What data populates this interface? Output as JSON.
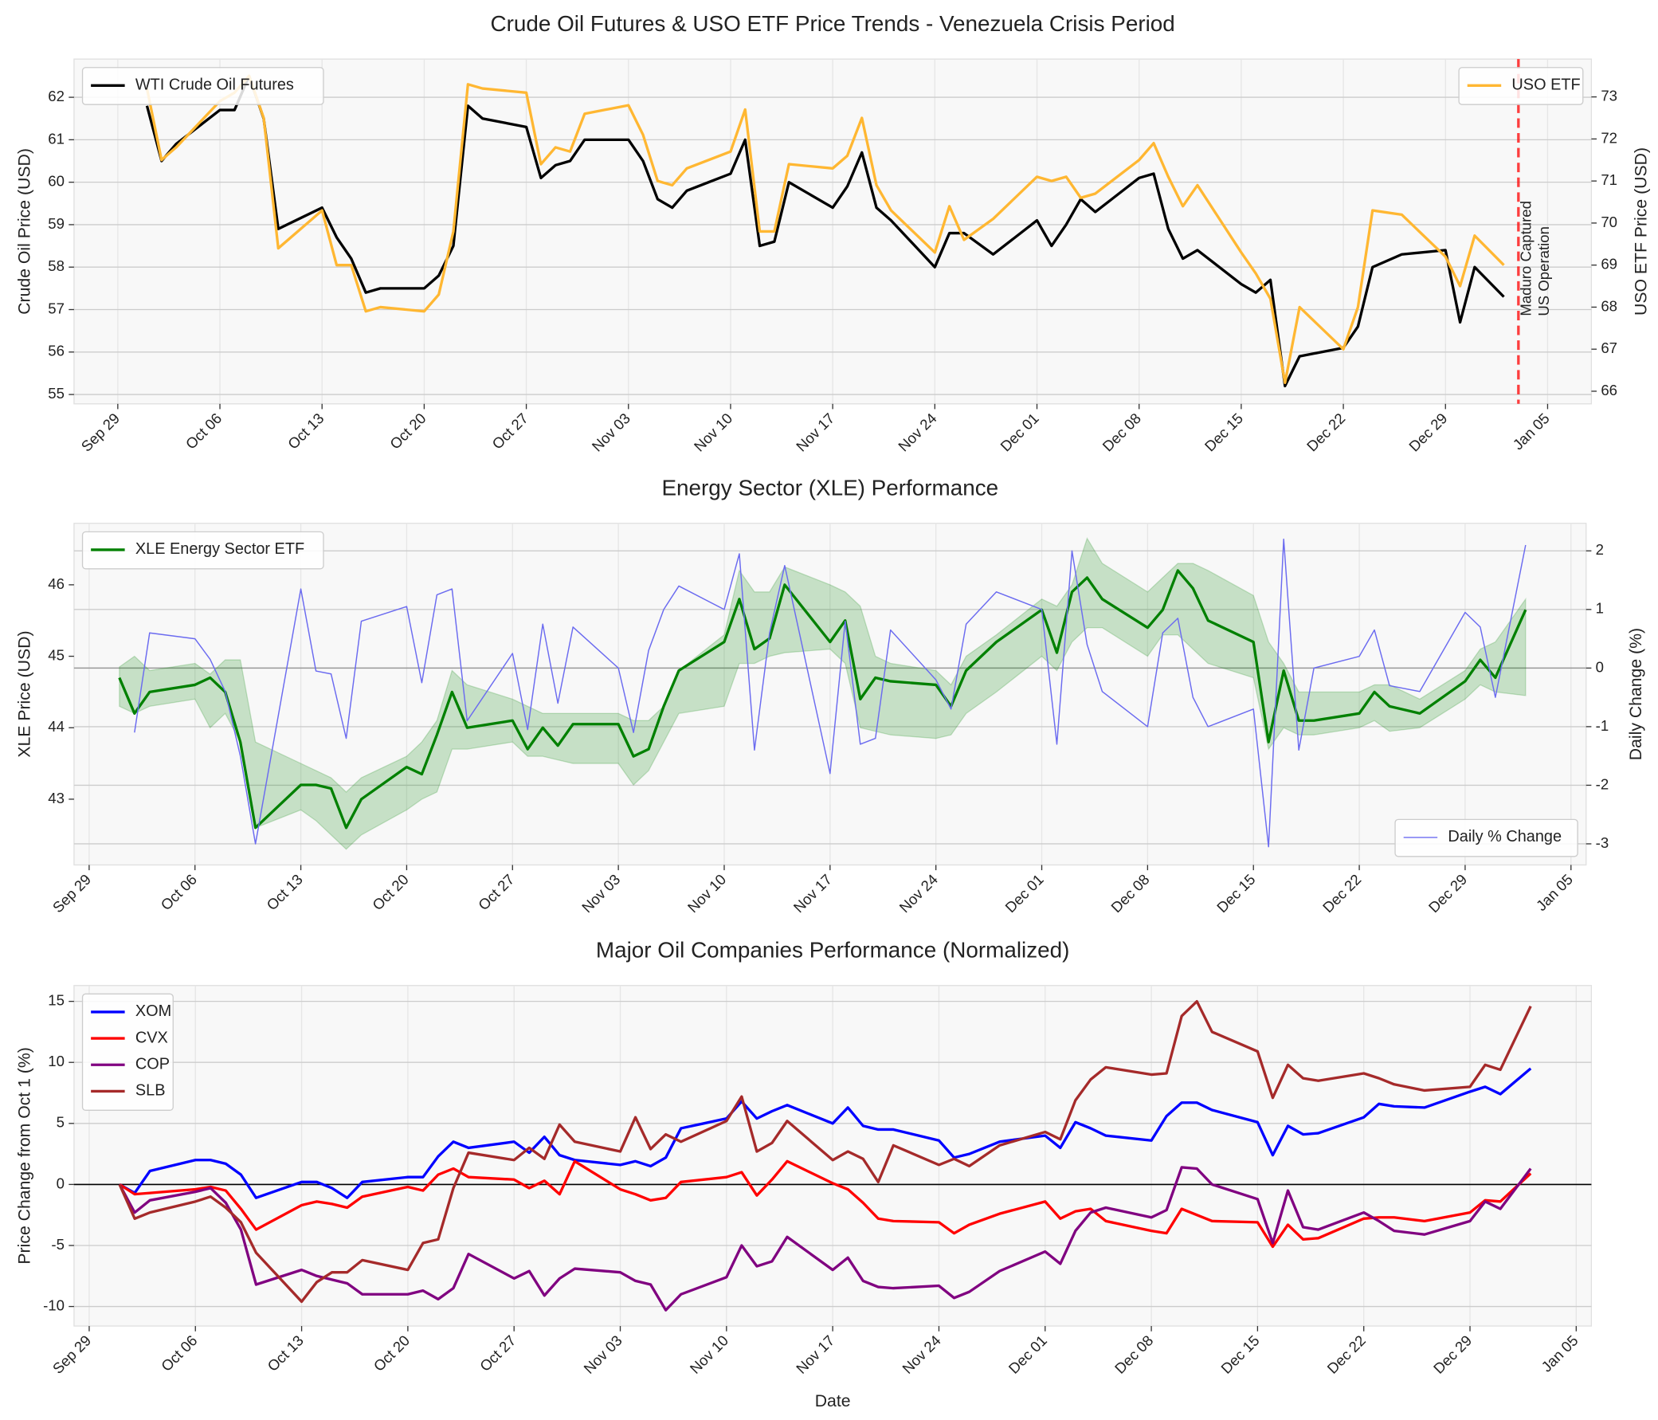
{
  "chart_data": [
    {
      "type": "line",
      "title": "Crude Oil Futures & USO ETF Price Trends - Venezuela Crisis Period",
      "ylabel": "Crude Oil Price (USD)",
      "y2label": "USO ETF Price (USD)",
      "y2label_color": "#ffa500",
      "x": [
        "Oct 01",
        "Oct 02",
        "Oct 03",
        "Oct 06",
        "Oct 07",
        "Oct 08",
        "Oct 09",
        "Oct 10",
        "Oct 13",
        "Oct 14",
        "Oct 15",
        "Oct 16",
        "Oct 17",
        "Oct 20",
        "Oct 21",
        "Oct 22",
        "Oct 23",
        "Oct 24",
        "Oct 27",
        "Oct 28",
        "Oct 29",
        "Oct 30",
        "Oct 31",
        "Nov 03",
        "Nov 04",
        "Nov 05",
        "Nov 06",
        "Nov 07",
        "Nov 10",
        "Nov 11",
        "Nov 12",
        "Nov 13",
        "Nov 14",
        "Nov 17",
        "Nov 18",
        "Nov 19",
        "Nov 20",
        "Nov 21",
        "Nov 24",
        "Nov 25",
        "Nov 26",
        "Nov 28",
        "Dec 01",
        "Dec 02",
        "Dec 03",
        "Dec 04",
        "Dec 05",
        "Dec 08",
        "Dec 09",
        "Dec 10",
        "Dec 11",
        "Dec 12",
        "Dec 15",
        "Dec 16",
        "Dec 17",
        "Dec 18",
        "Dec 19",
        "Dec 22",
        "Dec 23",
        "Dec 24",
        "Dec 26",
        "Dec 29",
        "Dec 30",
        "Dec 31",
        "Jan 02"
      ],
      "xlim": [
        "Sep 26",
        "Jan 08"
      ],
      "xticks": [
        "Sep 29",
        "Oct 06",
        "Oct 13",
        "Oct 20",
        "Oct 27",
        "Nov 03",
        "Nov 10",
        "Nov 17",
        "Nov 24",
        "Dec 01",
        "Dec 08",
        "Dec 15",
        "Dec 22",
        "Dec 29",
        "Jan 05"
      ],
      "ylim": [
        54.78,
        62.9
      ],
      "yticks": [
        55,
        56,
        57,
        58,
        59,
        60,
        61,
        62
      ],
      "y2lim": [
        65.7,
        73.9
      ],
      "y2ticks": [
        66,
        67,
        68,
        69,
        70,
        71,
        72,
        73
      ],
      "grid": "y",
      "series": [
        {
          "name": "WTI Crude Oil Futures",
          "color": "#000000",
          "linewidth": 2.5,
          "axis": "y",
          "legend": "upper left",
          "values": [
            61.8,
            60.5,
            60.9,
            61.7,
            61.7,
            62.5,
            61.5,
            58.9,
            59.4,
            58.7,
            58.2,
            57.4,
            57.5,
            57.5,
            57.8,
            58.5,
            61.8,
            61.5,
            61.3,
            60.1,
            60.4,
            60.5,
            61.0,
            61.0,
            60.5,
            59.6,
            59.4,
            59.8,
            60.2,
            61.0,
            58.5,
            58.6,
            60.0,
            59.4,
            59.9,
            60.7,
            59.4,
            59.1,
            58.0,
            58.8,
            58.8,
            58.3,
            59.1,
            58.5,
            59.0,
            59.6,
            59.3,
            60.1,
            60.2,
            58.9,
            58.2,
            58.4,
            57.6,
            57.4,
            57.7,
            55.2,
            55.9,
            56.1,
            56.6,
            58.0,
            58.3,
            58.4,
            56.7,
            58.0,
            57.3
          ]
        },
        {
          "name": "USO ETF",
          "color": "#ffb732",
          "linewidth": 2.5,
          "axis": "y2",
          "legend": "upper right",
          "values": [
            73.2,
            71.5,
            71.8,
            72.9,
            73.1,
            73.5,
            72.5,
            69.4,
            70.3,
            69.0,
            69.0,
            67.9,
            68.0,
            67.9,
            68.3,
            69.8,
            73.3,
            73.2,
            73.1,
            71.4,
            71.8,
            71.7,
            72.6,
            72.8,
            72.1,
            71.0,
            70.9,
            71.3,
            71.7,
            72.7,
            69.8,
            69.8,
            71.4,
            71.3,
            71.6,
            72.5,
            70.9,
            70.3,
            69.3,
            70.4,
            69.6,
            70.1,
            71.1,
            71.0,
            71.1,
            70.6,
            70.7,
            71.5,
            71.9,
            71.1,
            70.4,
            70.9,
            69.3,
            68.8,
            68.2,
            66.2,
            68.0,
            67.0,
            68.0,
            70.3,
            70.2,
            69.2,
            68.5,
            69.7,
            69.0
          ]
        }
      ],
      "annotation": {
        "x": "Jan 03",
        "text": [
          "Maduro Captured",
          "US Operation"
        ],
        "color": "#ff0000"
      }
    },
    {
      "type": "line",
      "title": "Energy Sector (XLE) Performance",
      "ylabel": "XLE Price (USD)",
      "y2label": "Daily Change (%)",
      "y2label_color": "#0000ff",
      "x": [
        "Oct 01",
        "Oct 02",
        "Oct 03",
        "Oct 06",
        "Oct 07",
        "Oct 08",
        "Oct 09",
        "Oct 10",
        "Oct 13",
        "Oct 14",
        "Oct 15",
        "Oct 16",
        "Oct 17",
        "Oct 20",
        "Oct 21",
        "Oct 22",
        "Oct 23",
        "Oct 24",
        "Oct 27",
        "Oct 28",
        "Oct 29",
        "Oct 30",
        "Oct 31",
        "Nov 03",
        "Nov 04",
        "Nov 05",
        "Nov 06",
        "Nov 07",
        "Nov 10",
        "Nov 11",
        "Nov 12",
        "Nov 13",
        "Nov 14",
        "Nov 17",
        "Nov 18",
        "Nov 19",
        "Nov 20",
        "Nov 21",
        "Nov 24",
        "Nov 25",
        "Nov 26",
        "Nov 28",
        "Dec 01",
        "Dec 02",
        "Dec 03",
        "Dec 04",
        "Dec 05",
        "Dec 08",
        "Dec 09",
        "Dec 10",
        "Dec 11",
        "Dec 12",
        "Dec 15",
        "Dec 16",
        "Dec 17",
        "Dec 18",
        "Dec 19",
        "Dec 22",
        "Dec 23",
        "Dec 24",
        "Dec 26",
        "Dec 29",
        "Dec 30",
        "Dec 31",
        "Jan 02"
      ],
      "xlim": [
        "Sep 28",
        "Jan 06"
      ],
      "xticks": [
        "Sep 29",
        "Oct 06",
        "Oct 13",
        "Oct 20",
        "Oct 27",
        "Nov 03",
        "Nov 10",
        "Nov 17",
        "Nov 24",
        "Dec 01",
        "Dec 08",
        "Dec 15",
        "Dec 22",
        "Dec 29",
        "Jan 05"
      ],
      "ylim": [
        42.08,
        46.86
      ],
      "yticks": [
        43,
        44,
        45,
        46
      ],
      "y2lim": [
        -3.36,
        2.47
      ],
      "y2ticks": [
        -3,
        -2,
        -1,
        0,
        1,
        2
      ],
      "grid": "y2",
      "hline": {
        "value": 0,
        "axis": "y2",
        "color": "#999999"
      },
      "band": {
        "color": "#008000",
        "low": [
          44.3,
          44.2,
          44.3,
          44.4,
          44.0,
          44.2,
          43.8,
          42.6,
          42.85,
          42.7,
          42.5,
          42.3,
          42.5,
          42.85,
          43.0,
          43.1,
          43.7,
          43.7,
          43.8,
          43.6,
          43.6,
          43.55,
          43.5,
          43.5,
          43.2,
          43.4,
          43.8,
          44.2,
          44.3,
          44.9,
          44.9,
          45.0,
          45.05,
          45.1,
          44.9,
          44.0,
          43.95,
          43.9,
          43.85,
          43.9,
          44.2,
          44.5,
          45.0,
          44.8,
          45.2,
          45.4,
          45.4,
          45.0,
          45.3,
          45.3,
          45.1,
          44.9,
          44.7,
          43.7,
          44.0,
          43.9,
          43.9,
          44.0,
          44.1,
          43.95,
          44.0,
          44.4,
          44.6,
          44.5,
          44.45
        ],
        "high": [
          44.85,
          45.0,
          44.8,
          44.9,
          44.75,
          44.95,
          44.95,
          43.8,
          43.5,
          43.4,
          43.3,
          43.1,
          43.3,
          43.6,
          43.8,
          44.1,
          44.8,
          44.6,
          44.4,
          44.3,
          44.2,
          44.2,
          44.2,
          44.2,
          44.1,
          44.1,
          44.3,
          44.8,
          45.3,
          46.2,
          45.9,
          45.9,
          46.25,
          46.0,
          45.9,
          45.7,
          45.0,
          44.9,
          44.8,
          44.6,
          45.0,
          45.3,
          45.8,
          45.7,
          46.0,
          46.65,
          46.3,
          45.9,
          46.1,
          46.3,
          46.3,
          46.2,
          45.85,
          45.2,
          44.9,
          44.5,
          44.5,
          44.5,
          44.6,
          44.6,
          44.4,
          44.8,
          45.1,
          45.2,
          45.8
        ]
      },
      "series": [
        {
          "name": "XLE Energy Sector ETF",
          "color": "#008000",
          "linewidth": 2.5,
          "axis": "y",
          "legend": "upper left",
          "values": [
            44.7,
            44.2,
            44.5,
            44.6,
            44.7,
            44.5,
            43.8,
            42.6,
            43.2,
            43.2,
            43.15,
            42.6,
            43.0,
            43.45,
            43.35,
            43.9,
            44.5,
            44.0,
            44.1,
            43.7,
            44.0,
            43.75,
            44.05,
            44.05,
            43.6,
            43.7,
            44.3,
            44.8,
            45.2,
            45.8,
            45.1,
            45.25,
            46.0,
            45.2,
            45.5,
            44.4,
            44.7,
            44.65,
            44.6,
            44.3,
            44.8,
            45.2,
            45.65,
            45.05,
            45.9,
            46.1,
            45.8,
            45.4,
            45.65,
            46.2,
            45.95,
            45.5,
            45.2,
            43.8,
            44.8,
            44.1,
            44.1,
            44.2,
            44.5,
            44.3,
            44.2,
            44.65,
            44.95,
            44.7,
            45.65
          ]
        },
        {
          "name": "Daily % Change",
          "color": "#6b6bf0",
          "linewidth": 1.1,
          "axis": "y2",
          "legend": "lower right",
          "values": [
            null,
            -1.1,
            0.6,
            0.5,
            0.15,
            -0.4,
            -1.5,
            -3.0,
            1.35,
            -0.05,
            -0.1,
            -1.2,
            0.8,
            1.05,
            -0.25,
            1.25,
            1.35,
            -0.9,
            0.25,
            -1.05,
            0.75,
            -0.6,
            0.7,
            0.0,
            -1.1,
            0.3,
            1.0,
            1.4,
            1.0,
            1.95,
            -1.4,
            0.6,
            1.75,
            -1.8,
            0.8,
            -1.3,
            -1.2,
            0.65,
            -0.2,
            -0.7,
            0.75,
            1.3,
            1.0,
            -1.3,
            2.0,
            0.4,
            -0.4,
            -1.0,
            0.6,
            0.85,
            -0.5,
            -1.0,
            -0.7,
            -3.05,
            2.2,
            -1.4,
            0.0,
            0.2,
            0.65,
            -0.3,
            -0.4,
            0.95,
            0.7,
            -0.5,
            2.1
          ]
        }
      ]
    },
    {
      "type": "line",
      "title": "Major Oil Companies Performance (Normalized)",
      "ylabel": "Price Change from Oct 1 (%)",
      "xlabel": "Date",
      "x": [
        "Oct 01",
        "Oct 02",
        "Oct 03",
        "Oct 06",
        "Oct 07",
        "Oct 08",
        "Oct 09",
        "Oct 10",
        "Oct 13",
        "Oct 14",
        "Oct 15",
        "Oct 16",
        "Oct 17",
        "Oct 20",
        "Oct 21",
        "Oct 22",
        "Oct 23",
        "Oct 24",
        "Oct 27",
        "Oct 28",
        "Oct 29",
        "Oct 30",
        "Oct 31",
        "Nov 03",
        "Nov 04",
        "Nov 05",
        "Nov 06",
        "Nov 07",
        "Nov 10",
        "Nov 11",
        "Nov 12",
        "Nov 13",
        "Nov 14",
        "Nov 17",
        "Nov 18",
        "Nov 19",
        "Nov 20",
        "Nov 21",
        "Nov 24",
        "Nov 25",
        "Nov 26",
        "Nov 28",
        "Dec 01",
        "Dec 02",
        "Dec 03",
        "Dec 04",
        "Dec 05",
        "Dec 08",
        "Dec 09",
        "Dec 10",
        "Dec 11",
        "Dec 12",
        "Dec 15",
        "Dec 16",
        "Dec 17",
        "Dec 18",
        "Dec 19",
        "Dec 22",
        "Dec 23",
        "Dec 24",
        "Dec 26",
        "Dec 29",
        "Dec 30",
        "Dec 31",
        "Jan 02"
      ],
      "xlim": [
        "Sep 28",
        "Jan 06"
      ],
      "xticks": [
        "Sep 29",
        "Oct 06",
        "Oct 13",
        "Oct 20",
        "Oct 27",
        "Nov 03",
        "Nov 10",
        "Nov 17",
        "Nov 24",
        "Dec 01",
        "Dec 08",
        "Dec 15",
        "Dec 22",
        "Dec 29",
        "Jan 05"
      ],
      "ylim": [
        -11.6,
        16.3
      ],
      "yticks": [
        -10,
        -5,
        0,
        5,
        10,
        15
      ],
      "grid": "y",
      "hline": {
        "value": 0,
        "axis": "y",
        "color": "#000000"
      },
      "series": [
        {
          "name": "XOM",
          "color": "#0000ff",
          "linewidth": 2.5,
          "axis": "y",
          "legend": "upper left",
          "values": [
            0,
            -0.7,
            1.1,
            2.0,
            2.0,
            1.7,
            0.8,
            -1.1,
            0.2,
            0.2,
            -0.3,
            -1.1,
            0.2,
            0.6,
            0.6,
            2.3,
            3.5,
            3.0,
            3.5,
            2.6,
            3.9,
            2.4,
            2.0,
            1.6,
            1.9,
            1.5,
            2.2,
            4.6,
            5.4,
            6.8,
            5.4,
            6.0,
            6.5,
            5.0,
            6.3,
            4.8,
            4.5,
            4.5,
            3.6,
            2.2,
            2.5,
            3.5,
            4.0,
            3.0,
            5.1,
            4.6,
            4.0,
            3.6,
            5.6,
            6.7,
            6.7,
            6.1,
            5.1,
            2.4,
            4.8,
            4.1,
            4.2,
            5.5,
            6.6,
            6.4,
            6.3,
            7.6,
            8.0,
            7.4,
            9.5
          ]
        },
        {
          "name": "CVX",
          "color": "#ff0000",
          "linewidth": 2.5,
          "axis": "y",
          "legend": "upper left",
          "values": [
            0,
            -0.8,
            -0.7,
            -0.4,
            -0.2,
            -0.5,
            -2.0,
            -3.7,
            -1.7,
            -1.4,
            -1.6,
            -1.9,
            -1.0,
            -0.2,
            -0.5,
            0.8,
            1.3,
            0.6,
            0.4,
            -0.3,
            0.3,
            -0.8,
            1.9,
            -0.4,
            -0.8,
            -1.3,
            -1.1,
            0.2,
            0.6,
            1.0,
            -0.9,
            0.4,
            1.9,
            0.1,
            -0.4,
            -1.5,
            -2.8,
            -3.0,
            -3.1,
            -4.0,
            -3.3,
            -2.4,
            -1.4,
            -2.8,
            -2.2,
            -2.0,
            -3.0,
            -3.8,
            -4.0,
            -2.0,
            -2.5,
            -3.0,
            -3.1,
            -5.1,
            -3.3,
            -4.5,
            -4.4,
            -2.8,
            -2.7,
            -2.7,
            -3.0,
            -2.3,
            -1.3,
            -1.4,
            0.9
          ]
        },
        {
          "name": "COP",
          "color": "#800080",
          "linewidth": 2.5,
          "axis": "y",
          "legend": "upper left",
          "values": [
            0,
            -2.3,
            -1.3,
            -0.6,
            -0.3,
            -1.5,
            -3.7,
            -8.2,
            -7.0,
            -7.5,
            -7.8,
            -8.1,
            -9.0,
            -9.0,
            -8.7,
            -9.4,
            -8.5,
            -5.7,
            -7.7,
            -7.1,
            -9.1,
            -7.7,
            -6.9,
            -7.2,
            -7.9,
            -8.2,
            -10.3,
            -9.0,
            -7.6,
            -5.0,
            -6.7,
            -6.3,
            -4.3,
            -7.0,
            -6.0,
            -7.9,
            -8.4,
            -8.5,
            -8.3,
            -9.3,
            -8.8,
            -7.1,
            -5.5,
            -6.5,
            -3.8,
            -2.3,
            -1.9,
            -2.7,
            -2.1,
            1.4,
            1.3,
            0.0,
            -1.2,
            -4.8,
            -0.5,
            -3.5,
            -3.7,
            -2.3,
            -3.0,
            -3.8,
            -4.1,
            -3.0,
            -1.4,
            -2.0,
            1.3
          ]
        },
        {
          "name": "SLB",
          "color": "#a52a2a",
          "linewidth": 2.5,
          "axis": "y",
          "legend": "upper left",
          "values": [
            0,
            -2.8,
            -2.3,
            -1.4,
            -1.0,
            -1.9,
            -3.1,
            -5.6,
            -9.6,
            -8.0,
            -7.2,
            -7.2,
            -6.2,
            -7.0,
            -4.8,
            -4.5,
            -0.3,
            2.6,
            2.0,
            3.0,
            2.1,
            4.9,
            3.5,
            2.7,
            5.5,
            2.9,
            4.1,
            3.5,
            5.2,
            7.2,
            2.7,
            3.4,
            5.2,
            2.0,
            2.7,
            2.1,
            0.2,
            3.2,
            1.6,
            2.1,
            1.5,
            3.2,
            4.3,
            3.7,
            6.9,
            8.6,
            9.6,
            9.0,
            9.1,
            13.8,
            15.0,
            12.5,
            10.9,
            7.1,
            9.8,
            8.7,
            8.5,
            9.1,
            8.7,
            8.2,
            7.7,
            8.0,
            9.8,
            9.4,
            14.6
          ]
        }
      ]
    }
  ]
}
